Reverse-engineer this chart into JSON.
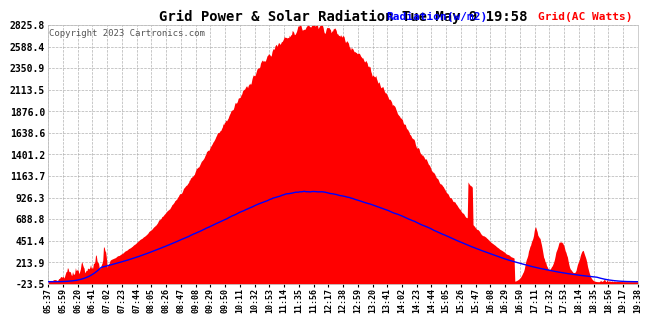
{
  "title": "Grid Power & Solar Radiation Tue May 9 19:58",
  "copyright": "Copyright 2023 Cartronics.com",
  "legend_radiation": "Radiation(w/m2)",
  "legend_grid": "Grid(AC Watts)",
  "yticks": [
    -23.5,
    213.9,
    451.4,
    688.8,
    926.3,
    1163.7,
    1401.2,
    1638.6,
    1876.0,
    2113.5,
    2350.9,
    2588.4,
    2825.8
  ],
  "ymin": -23.5,
  "ymax": 2825.8,
  "grid_color": "#aaaaaa",
  "fill_color": "#ff0000",
  "radiation_color": "#0000ff",
  "background_color": "#ffffff",
  "title_color": "#000000",
  "xtick_labels": [
    "05:37",
    "05:59",
    "06:20",
    "06:41",
    "07:02",
    "07:23",
    "07:44",
    "08:05",
    "08:26",
    "08:47",
    "09:08",
    "09:29",
    "09:50",
    "10:11",
    "10:32",
    "10:53",
    "11:14",
    "11:35",
    "11:56",
    "12:17",
    "12:38",
    "12:59",
    "13:20",
    "13:41",
    "14:02",
    "14:23",
    "14:44",
    "15:05",
    "15:26",
    "15:47",
    "16:08",
    "16:29",
    "16:50",
    "17:11",
    "17:32",
    "17:53",
    "18:14",
    "18:35",
    "18:56",
    "19:17",
    "19:38"
  ],
  "n_points": 820
}
